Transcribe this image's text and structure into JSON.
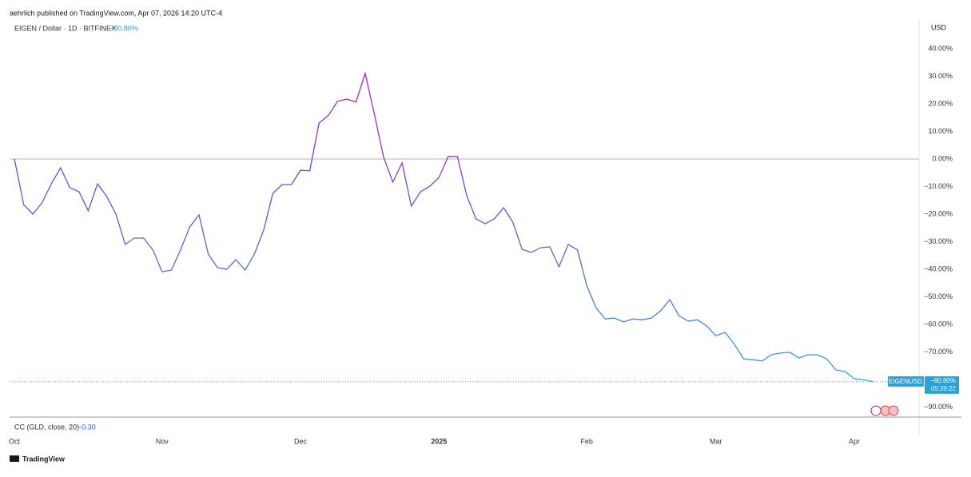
{
  "header": "aehrlich published on TradingView.com, Apr 07, 2026 14:20 UTC-4",
  "chart_data": {
    "type": "line",
    "symbol": "EIGEN / Dollar · 1D · BITFINEX",
    "currency": "USD",
    "categories": [
      "Oct",
      null,
      null,
      null,
      null,
      null,
      null,
      null,
      null,
      null,
      null,
      null,
      null,
      null,
      null,
      null,
      "Nov",
      null,
      null,
      null,
      null,
      null,
      null,
      null,
      null,
      null,
      null,
      null,
      null,
      null,
      null,
      "Dec",
      null,
      null,
      null,
      null,
      null,
      null,
      null,
      null,
      null,
      null,
      null,
      null,
      null,
      null,
      "2025",
      null,
      null,
      null,
      null,
      null,
      null,
      null,
      null,
      null,
      null,
      null,
      null,
      null,
      null,
      null,
      "Feb",
      null,
      null,
      null,
      null,
      null,
      null,
      null,
      null,
      null,
      null,
      null,
      null,
      null,
      "Mar",
      null,
      null,
      null,
      null,
      null,
      null,
      null,
      null,
      null,
      null,
      null,
      null,
      null,
      null,
      "Apr",
      null,
      null
    ],
    "series": [
      {
        "name": "EIGENUSD",
        "gradient": [
          "#a11fc9",
          "#6a55d6",
          "#2fa8d8"
        ],
        "last_value_label": "−80.80%",
        "countdown": "05:39:22",
        "values": [
          0,
          -16.5,
          -20.0,
          -15.9,
          -9.0,
          -3.2,
          -10.4,
          -11.9,
          -18.8,
          -9.0,
          -13.6,
          -20.0,
          -31.0,
          -28.7,
          -28.7,
          -33.0,
          -40.9,
          -40.3,
          -33.0,
          -24.6,
          -20.3,
          -34.5,
          -39.4,
          -40.0,
          -36.5,
          -40.3,
          -34.5,
          -25.8,
          -12.5,
          -9.3,
          -9.3,
          -4.1,
          -4.3,
          13.0,
          15.7,
          20.9,
          21.7,
          20.6,
          31.0,
          16.2,
          0.6,
          -8.4,
          -1.4,
          -17.1,
          -11.9,
          -9.9,
          -6.7,
          0.9,
          0.9,
          -13.3,
          -21.7,
          -23.5,
          -21.7,
          -17.7,
          -22.9,
          -32.8,
          -33.9,
          -32.2,
          -31.9,
          -39.1,
          -31.0,
          -33.0,
          -45.8,
          -53.9,
          -58.0,
          -57.7,
          -59.1,
          -58.0,
          -58.3,
          -57.7,
          -55.1,
          -51.0,
          -56.8,
          -58.8,
          -58.3,
          -60.6,
          -64.1,
          -62.9,
          -67.2,
          -72.5,
          -72.8,
          -73.3,
          -71.0,
          -70.4,
          -70.1,
          -72.2,
          -71.0,
          -71.0,
          -72.5,
          -76.5,
          -77.1,
          -79.7,
          -80.0,
          -80.8
        ]
      }
    ],
    "ylim": [
      -93.6,
      44.6
    ],
    "yticks": [
      {
        "value": 40,
        "label": "40.00%"
      },
      {
        "value": 30,
        "label": "30.00%"
      },
      {
        "value": 20,
        "label": "20.00%"
      },
      {
        "value": 10,
        "label": "10.00%"
      },
      {
        "value": 0,
        "label": "0.00%"
      },
      {
        "value": -10,
        "label": "−10.00%"
      },
      {
        "value": -20,
        "label": "−20.00%"
      },
      {
        "value": -30,
        "label": "−30.00%"
      },
      {
        "value": -40,
        "label": "−40.00%"
      },
      {
        "value": -50,
        "label": "−50.00%"
      },
      {
        "value": -60,
        "label": "−60.00%"
      },
      {
        "value": -70,
        "label": "−70.00%"
      },
      {
        "value": -90,
        "label": "−90.00%"
      }
    ],
    "baseline": 0,
    "grid": false
  },
  "indicator": {
    "label": "CC (GLD, close, 20)",
    "value_label": "−0.30"
  },
  "brand": "TradingView"
}
